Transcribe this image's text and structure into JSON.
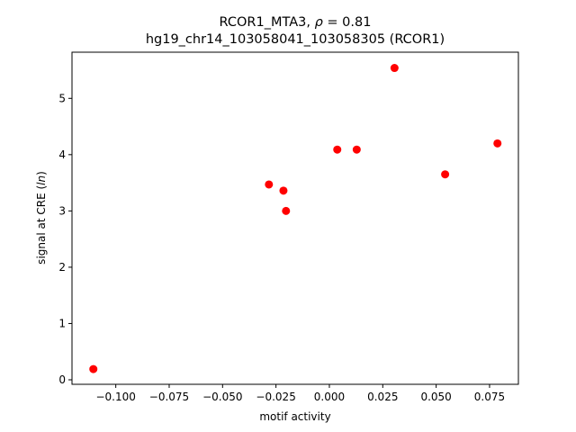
{
  "chart_data": {
    "type": "scatter",
    "title_line1_prefix": "RCOR1_MTA3, ",
    "title_line1_rho": "ρ",
    "title_line1_suffix": " = 0.81",
    "title_line2": "hg19_chr14_103058041_103058305 (RCOR1)",
    "xlabel": "motif activity",
    "ylabel_prefix": "signal at CRE (",
    "ylabel_italic": "ln",
    "ylabel_suffix": ")",
    "xlim": [
      -0.1205,
      0.0885
    ],
    "ylim": [
      -0.08,
      5.82
    ],
    "xticks": [
      -0.1,
      -0.075,
      -0.05,
      -0.025,
      0.0,
      0.025,
      0.05,
      0.075
    ],
    "xtick_labels": [
      "−0.100",
      "−0.075",
      "−0.050",
      "−0.025",
      "0.000",
      "0.025",
      "0.050",
      "0.075"
    ],
    "yticks": [
      0,
      1,
      2,
      3,
      4,
      5
    ],
    "ytick_labels": [
      "0",
      "1",
      "2",
      "3",
      "4",
      "5"
    ],
    "marker_color": "#ff0000",
    "points": [
      {
        "x": -0.1105,
        "y": 0.19
      },
      {
        "x": -0.0283,
        "y": 3.47
      },
      {
        "x": -0.0215,
        "y": 3.36
      },
      {
        "x": -0.0203,
        "y": 3.0
      },
      {
        "x": 0.0037,
        "y": 4.09
      },
      {
        "x": 0.0128,
        "y": 4.09
      },
      {
        "x": 0.0305,
        "y": 5.54
      },
      {
        "x": 0.0542,
        "y": 3.65
      },
      {
        "x": 0.0787,
        "y": 4.2
      }
    ]
  }
}
